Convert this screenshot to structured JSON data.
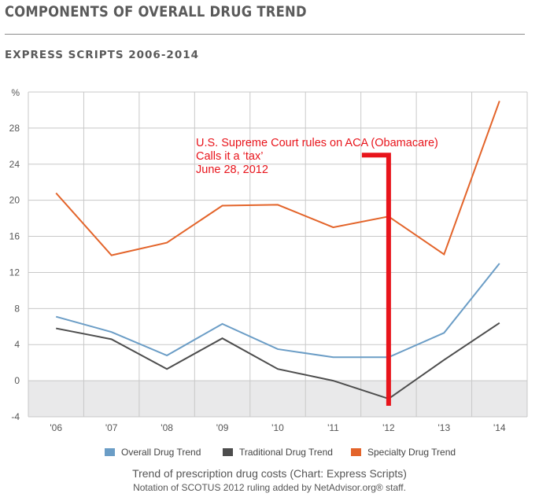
{
  "header": {
    "title": "COMPONENTS OF OVERALL DRUG TREND",
    "subtitle": "EXPRESS SCRIPTS 2006-2014"
  },
  "chart_data": {
    "type": "line",
    "categories": [
      "'06",
      "'07",
      "'08",
      "'09",
      "'10",
      "'11",
      "'12",
      "'13",
      "'14"
    ],
    "ylabel": "%",
    "yticks": [
      -4,
      0,
      4,
      8,
      12,
      16,
      20,
      24,
      28
    ],
    "ylim": [
      -4,
      32
    ],
    "grid": true,
    "legend_position": "bottom",
    "series": [
      {
        "name": "Overall Drug Trend",
        "color": "#6b9dc6",
        "values": [
          7.1,
          5.4,
          2.8,
          6.3,
          3.5,
          2.6,
          2.6,
          5.3,
          13.0
        ]
      },
      {
        "name": "Traditional Drug Trend",
        "color": "#4d4d4d",
        "values": [
          5.8,
          4.6,
          1.3,
          4.7,
          1.3,
          0.0,
          -2.0,
          2.3,
          6.4
        ]
      },
      {
        "name": "Specialty Drug Trend",
        "color": "#e3642a",
        "values": [
          20.8,
          13.9,
          15.3,
          19.4,
          19.5,
          17.0,
          18.2,
          14.0,
          31.0
        ]
      }
    ],
    "annotation": {
      "lines": [
        "U.S. Supreme Court rules on ACA (Obamacare)",
        "Calls it a ‘tax’",
        "June 28, 2012"
      ],
      "color": "#e8141b",
      "category": "'12",
      "marker_y": 25
    }
  },
  "footer": {
    "caption": "Trend of prescription drug costs (Chart: Express Scripts)",
    "note": "Notation of SCOTUS 2012 ruling added by NetAdvisor.org® staff."
  }
}
